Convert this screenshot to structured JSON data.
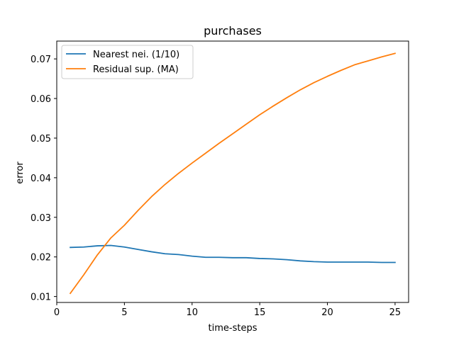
{
  "chart_data": {
    "type": "line",
    "title": "purchases",
    "xlabel": "time-steps",
    "ylabel": "error",
    "xlim": [
      0,
      26
    ],
    "ylim": [
      0.0085,
      0.0745
    ],
    "xticks": [
      0,
      5,
      10,
      15,
      20,
      25
    ],
    "yticks": [
      0.01,
      0.02,
      0.03,
      0.04,
      0.05,
      0.06,
      0.07
    ],
    "ytick_labels": [
      "0.01",
      "0.02",
      "0.03",
      "0.04",
      "0.05",
      "0.06",
      "0.07"
    ],
    "grid": false,
    "legend_position": "upper-left",
    "x": [
      1,
      2,
      3,
      4,
      5,
      6,
      7,
      8,
      9,
      10,
      11,
      12,
      13,
      14,
      15,
      16,
      17,
      18,
      19,
      20,
      21,
      22,
      23,
      24,
      25
    ],
    "series": [
      {
        "name": "Nearest nei. (1/10)",
        "color": "#1f77b4",
        "values": [
          0.0224,
          0.0225,
          0.0228,
          0.0229,
          0.0225,
          0.0219,
          0.0213,
          0.0208,
          0.0206,
          0.0202,
          0.0199,
          0.0199,
          0.0198,
          0.0198,
          0.0196,
          0.0195,
          0.0193,
          0.019,
          0.0188,
          0.0187,
          0.0187,
          0.0187,
          0.0187,
          0.0186,
          0.0186
        ]
      },
      {
        "name": "Residual sup. (MA)",
        "color": "#ff7f0e",
        "values": [
          0.0108,
          0.0155,
          0.0205,
          0.0248,
          0.028,
          0.0317,
          0.0352,
          0.0383,
          0.0411,
          0.0437,
          0.0462,
          0.0487,
          0.0511,
          0.0535,
          0.0559,
          0.0581,
          0.0602,
          0.0622,
          0.064,
          0.0656,
          0.0671,
          0.0685,
          0.0695,
          0.0705,
          0.0714
        ]
      }
    ]
  }
}
